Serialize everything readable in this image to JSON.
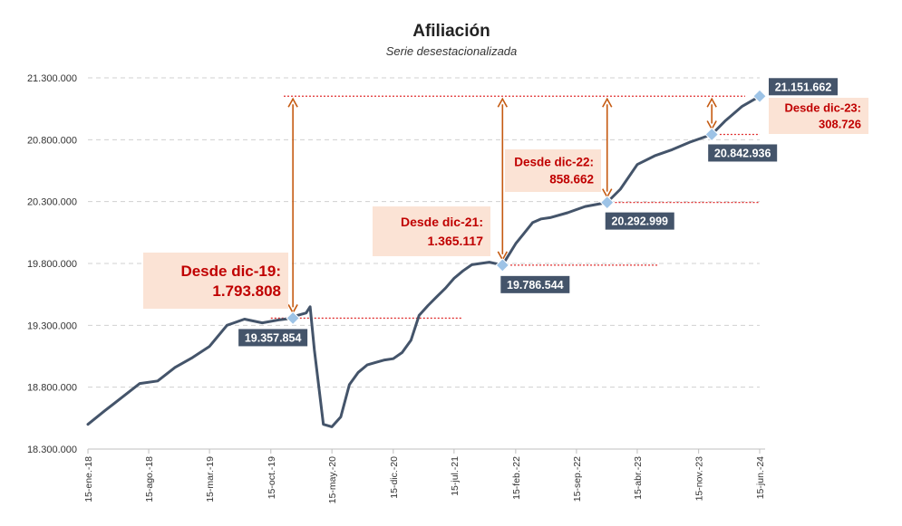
{
  "chart_data": {
    "type": "line",
    "title": "Afiliación",
    "subtitle": "Serie desestacionalizada",
    "xlabel": "",
    "ylabel": "",
    "ylim": [
      18300000,
      21300000
    ],
    "y_ticks": [
      18300000,
      18800000,
      19300000,
      19800000,
      20300000,
      20800000,
      21300000
    ],
    "y_tick_labels": [
      "18.300.000",
      "18.800.000",
      "19.300.000",
      "19.800.000",
      "20.300.000",
      "20.800.000",
      "21.300.000"
    ],
    "x_ticks": [
      "2018-01-15",
      "2018-08-15",
      "2019-03-15",
      "2019-10-15",
      "2020-05-15",
      "2020-12-15",
      "2021-07-15",
      "2022-02-15",
      "2022-09-15",
      "2023-04-15",
      "2023-11-15",
      "2024-06-15"
    ],
    "x_tick_labels": [
      "15-ene.-18",
      "15-ago.-18",
      "15-mar.-19",
      "15-oct.-19",
      "15-may.-20",
      "15-dic.-20",
      "15-jul.-21",
      "15-feb.-22",
      "15-sep.-22",
      "15-abr.-23",
      "15-nov.-23",
      "15-jun.-24"
    ],
    "grid": true,
    "legend": "none",
    "line_color": "#44546a",
    "series": [
      {
        "x": [
          "2018-01-15",
          "2018-03-15",
          "2018-05-15",
          "2018-07-15",
          "2018-09-15",
          "2018-11-15",
          "2019-01-15",
          "2019-03-15",
          "2019-05-15",
          "2019-07-15",
          "2019-09-15",
          "2019-11-15",
          "2019-12-31",
          "2020-01-15",
          "2020-02-15",
          "2020-02-29",
          "2020-03-15",
          "2020-04-15",
          "2020-05-15",
          "2020-06-15",
          "2020-07-15",
          "2020-08-15",
          "2020-09-15",
          "2020-10-15",
          "2020-11-15",
          "2020-12-15",
          "2021-01-15",
          "2021-02-15",
          "2021-03-15",
          "2021-04-15",
          "2021-05-15",
          "2021-06-15",
          "2021-07-15",
          "2021-08-15",
          "2021-09-15",
          "2021-10-15",
          "2021-11-15",
          "2021-12-31",
          "2022-02-15",
          "2022-03-15",
          "2022-04-15",
          "2022-05-15",
          "2022-06-15",
          "2022-08-15",
          "2022-10-15",
          "2022-12-31",
          "2023-02-15",
          "2023-04-15",
          "2023-06-15",
          "2023-08-15",
          "2023-10-15",
          "2023-12-31",
          "2024-02-15",
          "2024-04-15",
          "2024-06-15"
        ],
        "y": [
          18500000,
          18610000,
          18720000,
          18830000,
          18850000,
          18960000,
          19040000,
          19130000,
          19300000,
          19350000,
          19320000,
          19345000,
          19357854,
          19380000,
          19400000,
          19450000,
          19100000,
          18500000,
          18480000,
          18560000,
          18820000,
          18920000,
          18980000,
          19000000,
          19020000,
          19030000,
          19080000,
          19180000,
          19380000,
          19460000,
          19530000,
          19600000,
          19680000,
          19740000,
          19790000,
          19800000,
          19810000,
          19786544,
          19960000,
          20040000,
          20130000,
          20160000,
          20170000,
          20210000,
          20260000,
          20292999,
          20400000,
          20600000,
          20670000,
          20720000,
          20780000,
          20842936,
          20950000,
          21070000,
          21151662
        ]
      }
    ],
    "highlight_points": [
      {
        "x": "2019-12-31",
        "y": 19357854,
        "label": "19.357.854"
      },
      {
        "x": "2021-12-31",
        "y": 19786544,
        "label": "19.786.544"
      },
      {
        "x": "2022-12-31",
        "y": 20292999,
        "label": "20.292.999"
      },
      {
        "x": "2023-12-31",
        "y": 20842936,
        "label": "20.842.936"
      },
      {
        "x": "2024-06-15",
        "y": 21151662,
        "label": "21.151.662"
      }
    ],
    "annotations": [
      {
        "line1": "Desde dic-19:",
        "line2": "1.793.808",
        "from": 19357854,
        "to": 21151662,
        "at": "2019-12-31"
      },
      {
        "line1": "Desde dic-21:",
        "line2": "1.365.117",
        "from": 19786544,
        "to": 21151662,
        "at": "2021-12-31"
      },
      {
        "line1": "Desde dic-22:",
        "line2": "858.662",
        "from": 20292999,
        "to": 21151662,
        "at": "2022-12-31"
      },
      {
        "line1": "Desde dic-23:",
        "line2": "308.726",
        "from": 20842936,
        "to": 21151662,
        "at": "2023-12-31"
      }
    ]
  }
}
